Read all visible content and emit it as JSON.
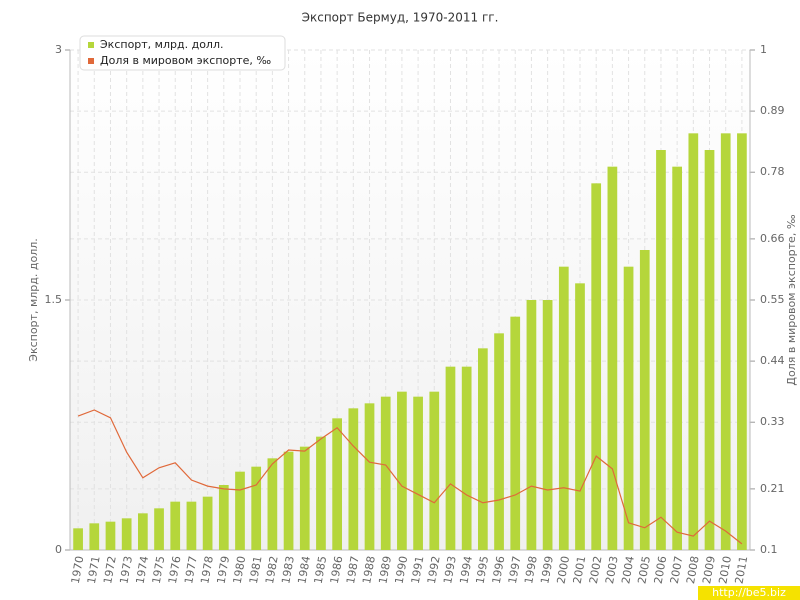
{
  "chart_data": {
    "type": "bar-line",
    "title": "Экспорт Бермуд, 1970-2011 гг.",
    "y_label": "Экспорт, млрд. долл.",
    "y2_label": "Доля в мировом экспорте, ‰",
    "watermark": "http://be5.biz",
    "categories": [
      "1970",
      "1971",
      "1972",
      "1973",
      "1974",
      "1975",
      "1976",
      "1977",
      "1978",
      "1979",
      "1980",
      "1981",
      "1982",
      "1983",
      "1984",
      "1985",
      "1986",
      "1987",
      "1988",
      "1989",
      "1990",
      "1991",
      "1992",
      "1993",
      "1994",
      "1995",
      "1996",
      "1997",
      "1998",
      "1999",
      "2000",
      "2001",
      "2002",
      "2003",
      "2004",
      "2005",
      "2006",
      "2007",
      "2008",
      "2009",
      "2010",
      "2011"
    ],
    "series": [
      {
        "name": "Экспорт, млрд. долл.",
        "color": "#b5d63b",
        "type": "bar",
        "values": [
          0.13,
          0.16,
          0.17,
          0.19,
          0.22,
          0.25,
          0.29,
          0.29,
          0.32,
          0.39,
          0.47,
          0.5,
          0.55,
          0.59,
          0.62,
          0.68,
          0.79,
          0.85,
          0.88,
          0.92,
          0.95,
          0.92,
          0.95,
          1.1,
          1.1,
          1.21,
          1.3,
          1.4,
          1.5,
          1.5,
          1.7,
          1.6,
          2.2,
          2.3,
          1.7,
          1.8,
          2.4,
          2.3,
          2.5,
          2.4,
          2.5,
          2.5
        ]
      },
      {
        "name": "Доля в мировом экспорте, ‰",
        "color": "#e0693a",
        "type": "line",
        "axis": "y2",
        "values": [
          0.341,
          0.352,
          0.338,
          0.276,
          0.23,
          0.248,
          0.257,
          0.226,
          0.215,
          0.21,
          0.208,
          0.217,
          0.255,
          0.28,
          0.278,
          0.3,
          0.32,
          0.287,
          0.258,
          0.253,
          0.215,
          0.2,
          0.185,
          0.219,
          0.199,
          0.185,
          0.19,
          0.199,
          0.215,
          0.208,
          0.212,
          0.206,
          0.269,
          0.246,
          0.149,
          0.14,
          0.159,
          0.132,
          0.125,
          0.152,
          0.134,
          0.111
        ]
      }
    ],
    "ylim": [
      0,
      3
    ],
    "yticks": [
      0,
      1.5,
      3
    ],
    "y2lim": [
      0.1,
      1
    ],
    "y2ticks": [
      0.1,
      0.21,
      0.33,
      0.44,
      0.55,
      0.66,
      0.78,
      0.89,
      1
    ],
    "grid": true,
    "legend": "top-left"
  }
}
